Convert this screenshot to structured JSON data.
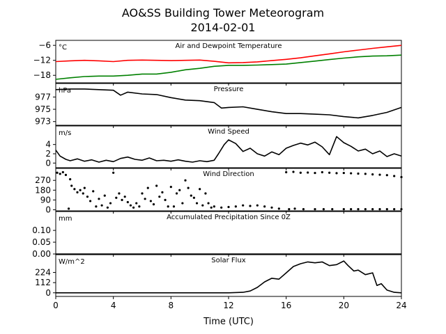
{
  "title": "AO&SS Building Tower Meteorogram",
  "subtitle": "2014-02-01",
  "xlabel": "Time (UTC)",
  "colors": {
    "temperature": "#ff0000",
    "dewpoint": "#008000",
    "default": "#000000"
  },
  "chart_data": [
    {
      "type": "line",
      "title": "Air and Dewpoint Temperature",
      "unit": "°C",
      "xlim": [
        0,
        24
      ],
      "ylim": [
        -21,
        -4
      ],
      "xticks": [
        0,
        4,
        8,
        12,
        16,
        20,
        24
      ],
      "xtick_labels": [
        "0",
        "4",
        "8",
        "12",
        "16",
        "20",
        "24"
      ],
      "yticks": [
        -6,
        -12,
        -18
      ],
      "ytick_labels": [
        "−6",
        "−12",
        "−18"
      ],
      "series": [
        {
          "color": "#ff0000",
          "x": [
            0,
            1,
            2,
            3,
            4,
            5,
            6,
            7,
            8,
            9,
            10,
            11,
            12,
            13,
            14,
            15,
            16,
            17,
            18,
            19,
            20,
            21,
            22,
            23,
            24
          ],
          "y": [
            -12.5,
            -12.2,
            -12.0,
            -12.2,
            -12.5,
            -12.0,
            -11.9,
            -12.0,
            -12.1,
            -12.0,
            -11.9,
            -12.4,
            -13.0,
            -12.9,
            -12.6,
            -12.1,
            -11.6,
            -11.0,
            -10.2,
            -9.4,
            -8.6,
            -7.9,
            -7.2,
            -6.6,
            -6.0
          ]
        },
        {
          "color": "#008000",
          "x": [
            0,
            1,
            2,
            3,
            4,
            5,
            6,
            7,
            8,
            9,
            10,
            11,
            12,
            13,
            14,
            15,
            16,
            17,
            18,
            19,
            20,
            21,
            22,
            23,
            24
          ],
          "y": [
            -19.6,
            -19.0,
            -18.5,
            -18.3,
            -18.3,
            -18.0,
            -17.5,
            -17.5,
            -16.8,
            -15.8,
            -15.2,
            -14.4,
            -14.0,
            -14.0,
            -13.9,
            -13.7,
            -13.5,
            -12.9,
            -12.3,
            -11.7,
            -11.1,
            -10.6,
            -10.3,
            -10.2,
            -9.9
          ]
        }
      ]
    },
    {
      "type": "line",
      "title": "Pressure",
      "unit": "hPa",
      "xlim": [
        0,
        24
      ],
      "ylim": [
        972.4,
        979.2
      ],
      "yticks": [
        977,
        975,
        973
      ],
      "ytick_labels": [
        "977",
        "975",
        "973"
      ],
      "series": [
        {
          "color": "#000000",
          "x": [
            0,
            1,
            2,
            3,
            4,
            4.5,
            5,
            6,
            7,
            8,
            9,
            10,
            11,
            11.5,
            12,
            13,
            14,
            15,
            16,
            17,
            18,
            19,
            20,
            21,
            22,
            23,
            24
          ],
          "y": [
            978.2,
            978.3,
            978.3,
            978.2,
            978.1,
            977.3,
            977.8,
            977.5,
            977.4,
            976.9,
            976.5,
            976.4,
            976.1,
            975.2,
            975.3,
            975.4,
            975.0,
            974.6,
            974.3,
            974.3,
            974.2,
            974.1,
            973.8,
            973.6,
            974.0,
            974.5,
            975.3
          ]
        }
      ]
    },
    {
      "type": "line",
      "title": "Wind Speed",
      "unit": "m/s",
      "xlim": [
        0,
        24
      ],
      "ylim": [
        -1,
        8
      ],
      "yticks": [
        4,
        2,
        0
      ],
      "ytick_labels": [
        "4",
        "2",
        "0"
      ],
      "series": [
        {
          "color": "#000000",
          "x": [
            0,
            0.3,
            0.7,
            1,
            1.5,
            2,
            2.5,
            3,
            3.5,
            4,
            4.5,
            5,
            5.5,
            6,
            6.5,
            7,
            7.5,
            8,
            8.5,
            9,
            9.5,
            10,
            10.5,
            11,
            11.3,
            11.7,
            12,
            12.5,
            13,
            13.5,
            14,
            14.5,
            15,
            15.5,
            16,
            16.5,
            17,
            17.5,
            18,
            18.5,
            19,
            19.5,
            20,
            20.5,
            21,
            21.5,
            22,
            22.5,
            23,
            23.5,
            24
          ],
          "y": [
            2.8,
            1.5,
            0.8,
            0.5,
            0.9,
            0.4,
            0.7,
            0.2,
            0.6,
            0.3,
            1.0,
            1.3,
            0.8,
            0.6,
            1.1,
            0.5,
            0.6,
            0.4,
            0.7,
            0.4,
            0.2,
            0.5,
            0.3,
            0.6,
            2.0,
            4.0,
            5.0,
            4.2,
            2.5,
            3.2,
            2.0,
            1.5,
            2.4,
            1.8,
            3.2,
            3.8,
            4.3,
            3.9,
            4.5,
            3.5,
            1.8,
            5.7,
            4.4,
            3.6,
            2.6,
            3.0,
            2.0,
            2.6,
            1.4,
            2.0,
            1.5
          ]
        }
      ]
    },
    {
      "type": "scatter",
      "title": "Wind Direction",
      "unit": "",
      "xlim": [
        0,
        24
      ],
      "ylim": [
        -10,
        380
      ],
      "yticks": [
        270,
        180,
        90,
        0
      ],
      "ytick_labels": [
        "270",
        "180",
        "90",
        "0"
      ],
      "series": [
        {
          "color": "#000000",
          "x": [
            0.1,
            0.3,
            0.5,
            0.7,
            0.9,
            1.0,
            1.1,
            1.3,
            1.5,
            1.7,
            1.9,
            2.0,
            2.2,
            2.4,
            2.6,
            2.8,
            3.0,
            3.2,
            3.4,
            3.6,
            3.8,
            4.0,
            4.2,
            4.4,
            4.6,
            4.8,
            5.0,
            5.2,
            5.4,
            5.6,
            5.8,
            6.0,
            6.2,
            6.4,
            6.6,
            6.8,
            7.0,
            7.2,
            7.4,
            7.6,
            7.8,
            8.0,
            8.2,
            8.4,
            8.6,
            8.8,
            9.0,
            9.2,
            9.4,
            9.6,
            9.8,
            10.0,
            10.2,
            10.4,
            10.6,
            10.8,
            11.0,
            11.5,
            12.0,
            12.5,
            13.0,
            13.5,
            14.0,
            14.5,
            15.0,
            15.5,
            16.2,
            16.6,
            17.2,
            18.0,
            18.6,
            19.2,
            20.0,
            20.5,
            21.0,
            21.5,
            22.0,
            22.5,
            23.0,
            23.5,
            24.0
          ],
          "y": [
            340,
            330,
            345,
            320,
            10,
            280,
            220,
            190,
            160,
            180,
            150,
            200,
            120,
            80,
            170,
            30,
            100,
            40,
            130,
            20,
            60,
            340,
            110,
            150,
            90,
            120,
            70,
            40,
            20,
            60,
            30,
            150,
            100,
            200,
            80,
            50,
            220,
            120,
            160,
            90,
            30,
            210,
            30,
            150,
            180,
            60,
            270,
            200,
            130,
            110,
            60,
            190,
            40,
            150,
            60,
            20,
            30,
            20,
            25,
            30,
            40,
            35,
            40,
            30,
            20,
            10,
            5,
            10,
            5,
            5,
            5,
            5,
            5,
            5,
            5,
            5,
            5,
            5,
            5,
            5,
            5
          ]
        },
        {
          "color": "#000000",
          "x": [
            16.0,
            16.5,
            17.0,
            17.5,
            18.0,
            18.5,
            19.0,
            19.5,
            20.0,
            20.5,
            21.0,
            21.5,
            22.0,
            22.5,
            23.0,
            23.5,
            24.0
          ],
          "y": [
            345,
            348,
            340,
            342,
            338,
            345,
            340,
            336,
            338,
            335,
            332,
            330,
            325,
            322,
            318,
            310,
            300
          ]
        }
      ]
    },
    {
      "type": "line",
      "title": "Accumulated Precipitation Since 0Z",
      "unit": "mm",
      "xlim": [
        0,
        24
      ],
      "ylim": [
        0,
        0.18
      ],
      "yticks": [
        0.1,
        0.05,
        0.0
      ],
      "ytick_labels": [
        "0.10",
        "0.05",
        "0.00"
      ],
      "series": [
        {
          "color": "#000000",
          "x": [
            0,
            24
          ],
          "y": [
            0,
            0
          ]
        }
      ]
    },
    {
      "type": "line",
      "title": "Solar Flux",
      "unit": "W/m^2",
      "xlim": [
        0,
        24
      ],
      "ylim": [
        -40,
        420
      ],
      "yticks": [
        224,
        112,
        0
      ],
      "ytick_labels": [
        "224",
        "112",
        "0"
      ],
      "series": [
        {
          "color": "#000000",
          "x": [
            0,
            12,
            13,
            13.5,
            14,
            14.5,
            15,
            15.5,
            16,
            16.5,
            17,
            17.5,
            18,
            18.5,
            19,
            19.5,
            20,
            20.3,
            20.7,
            21,
            21.5,
            22,
            22.3,
            22.6,
            23,
            23.5,
            24
          ],
          "y": [
            0,
            0,
            5,
            20,
            60,
            120,
            160,
            150,
            220,
            290,
            320,
            340,
            330,
            340,
            300,
            310,
            350,
            300,
            240,
            250,
            200,
            220,
            80,
            100,
            30,
            5,
            0
          ]
        }
      ]
    }
  ]
}
